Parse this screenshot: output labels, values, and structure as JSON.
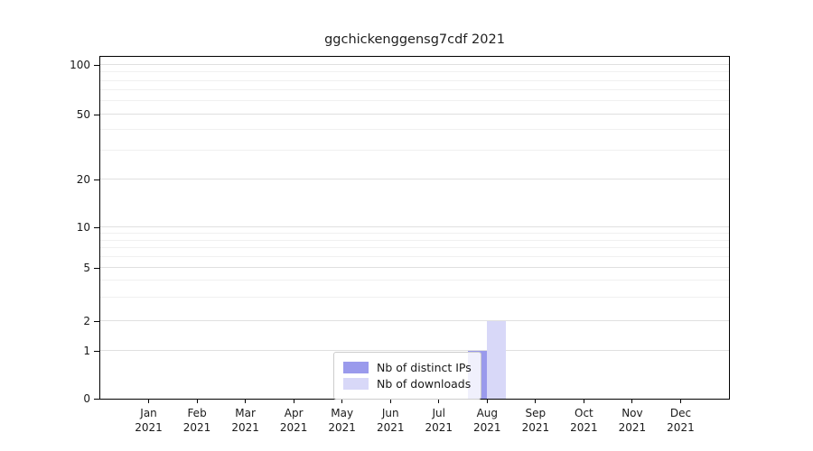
{
  "chart_data": {
    "type": "bar",
    "title": "ggchickenggensg7cdf 2021",
    "categories": [
      {
        "month": "Jan",
        "year": "2021"
      },
      {
        "month": "Feb",
        "year": "2021"
      },
      {
        "month": "Mar",
        "year": "2021"
      },
      {
        "month": "Apr",
        "year": "2021"
      },
      {
        "month": "May",
        "year": "2021"
      },
      {
        "month": "Jun",
        "year": "2021"
      },
      {
        "month": "Jul",
        "year": "2021"
      },
      {
        "month": "Aug",
        "year": "2021"
      },
      {
        "month": "Sep",
        "year": "2021"
      },
      {
        "month": "Oct",
        "year": "2021"
      },
      {
        "month": "Nov",
        "year": "2021"
      },
      {
        "month": "Dec",
        "year": "2021"
      }
    ],
    "series": [
      {
        "name": "Nb of distinct IPs",
        "color": "#9a9aec",
        "values": [
          0,
          0,
          0,
          0,
          0,
          0,
          0,
          1,
          0,
          0,
          0,
          0
        ]
      },
      {
        "name": "Nb of downloads",
        "color": "#d8d8f8",
        "values": [
          0,
          0,
          0,
          0,
          0,
          0,
          0,
          2,
          0,
          0,
          0,
          0
        ]
      }
    ],
    "y_axis": {
      "scale": "log-like",
      "ticks": [
        0,
        1,
        2,
        5,
        10,
        20,
        50,
        100
      ],
      "minor_ticks": [
        3,
        4,
        6,
        7,
        8,
        9,
        30,
        40,
        60,
        70,
        80,
        90
      ],
      "ylim": [
        0,
        100
      ]
    },
    "legend": {
      "position": "lower center",
      "items": [
        "Nb of distinct IPs",
        "Nb of downloads"
      ]
    },
    "grid": "horizontal"
  }
}
